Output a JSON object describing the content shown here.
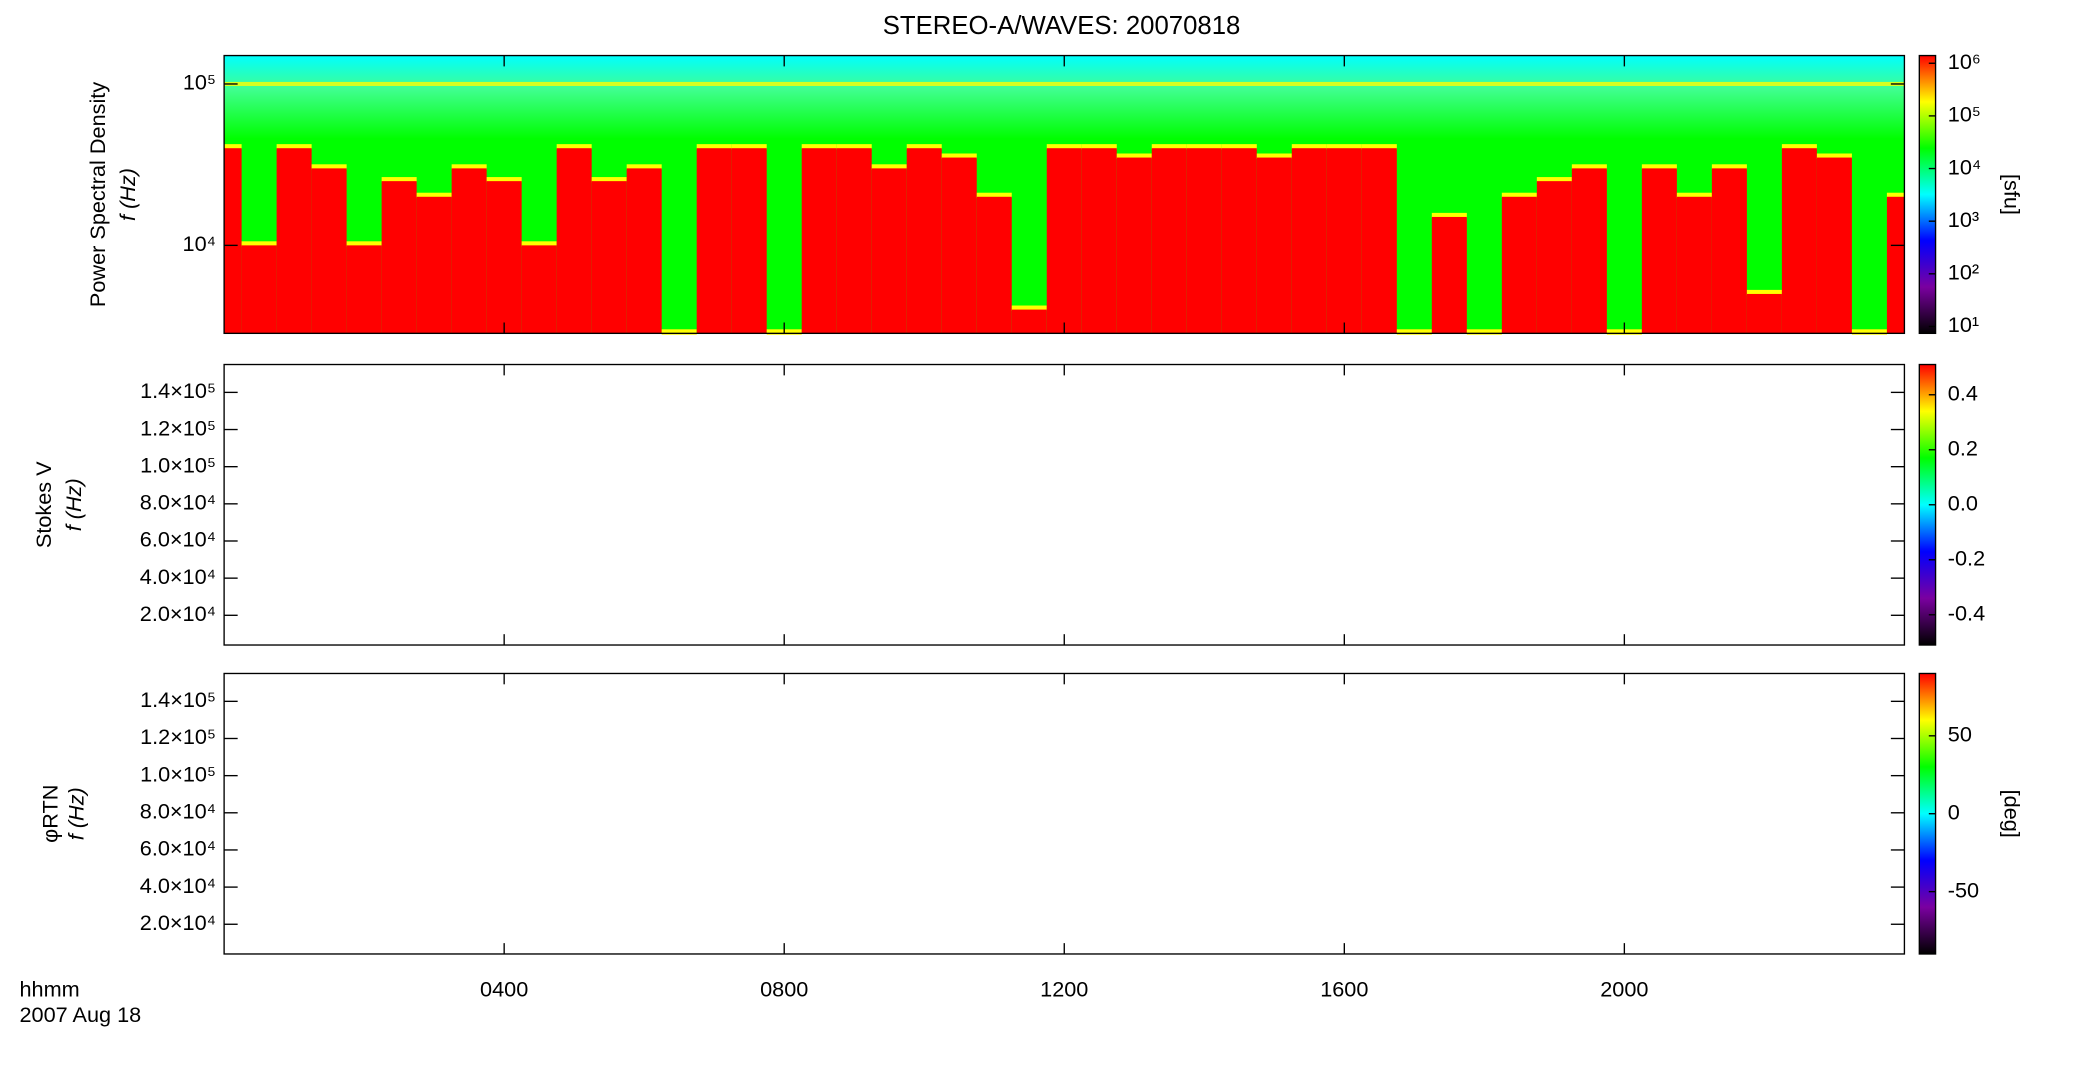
{
  "title": "STEREO-A/WAVES: 20070818",
  "x_label_lines": [
    "hhmm",
    "2007 Aug 18"
  ],
  "chart_data": [
    {
      "type": "spectrogram",
      "y_label": [
        "Power Spectral Density",
        "f (Hz)"
      ],
      "colorbar_label": "[sfu]",
      "log_y": true,
      "ylim": [
        2850,
        150000
      ],
      "yticks": [
        {
          "value": 10000,
          "label": "10⁴"
        },
        {
          "value": 100000,
          "label": "10⁵"
        }
      ],
      "xlim": [
        0,
        24
      ],
      "xticks": [
        {
          "value": 4,
          "label": "0400"
        },
        {
          "value": 8,
          "label": "0800"
        },
        {
          "value": 12,
          "label": "1200"
        },
        {
          "value": 16,
          "label": "1600"
        },
        {
          "value": 20,
          "label": "2000"
        }
      ],
      "log_c": true,
      "clim": [
        7.4,
        1400000
      ],
      "cticks": [
        {
          "value": 10,
          "label": "10¹"
        },
        {
          "value": 100,
          "label": "10²"
        },
        {
          "value": 1000,
          "label": "10³"
        },
        {
          "value": 10000,
          "label": "10⁴"
        },
        {
          "value": 100000,
          "label": "10⁵"
        },
        {
          "value": 1000000,
          "label": "10⁶"
        }
      ],
      "colormap": [
        "#000000",
        "#7a00a0",
        "#0000ff",
        "#00ffff",
        "#00ff00",
        "#ffff00",
        "#ff0000"
      ],
      "band_hz": 100000,
      "x": [
        0,
        0.5,
        1,
        1.5,
        2,
        2.5,
        3,
        3.5,
        4,
        4.5,
        5,
        5.5,
        6,
        6.5,
        7,
        7.5,
        8,
        8.5,
        9,
        9.5,
        10,
        10.5,
        11,
        11.5,
        12,
        12.5,
        13,
        13.5,
        14,
        14.5,
        15,
        15.5,
        16,
        16.5,
        17,
        17.5,
        18,
        18.5,
        19,
        19.5,
        20,
        20.5,
        21,
        21.5,
        22,
        22.5,
        23,
        23.5,
        24
      ],
      "values": [
        40000,
        10000,
        40000,
        30000,
        10000,
        25000,
        20000,
        30000,
        25000,
        10000,
        40000,
        25000,
        30000,
        2850,
        40000,
        40000,
        2850,
        40000,
        40000,
        30000,
        40000,
        35000,
        20000,
        4000,
        40000,
        40000,
        35000,
        40000,
        40000,
        40000,
        35000,
        40000,
        40000,
        40000,
        2850,
        15000,
        2850,
        20000,
        25000,
        30000,
        2850,
        30000,
        20000,
        30000,
        5000,
        40000,
        35000,
        2850,
        20000
      ]
    },
    {
      "type": "spectrogram",
      "y_label": [
        "Stokes V",
        "f (Hz)"
      ],
      "log_y": false,
      "ylim": [
        4000,
        155000
      ],
      "yticks": [
        {
          "value": 20000,
          "label": "2.0×10⁴"
        },
        {
          "value": 40000,
          "label": "4.0×10⁴"
        },
        {
          "value": 60000,
          "label": "6.0×10⁴"
        },
        {
          "value": 80000,
          "label": "8.0×10⁴"
        },
        {
          "value": 100000,
          "label": "1.0×10⁵"
        },
        {
          "value": 120000,
          "label": "1.2×10⁵"
        },
        {
          "value": 140000,
          "label": "1.4×10⁵"
        }
      ],
      "xlim": [
        0,
        24
      ],
      "xticks": [
        4,
        8,
        12,
        16,
        20
      ],
      "log_c": false,
      "clim": [
        -0.51,
        0.51
      ],
      "cticks": [
        -0.4,
        -0.2,
        {
          "value": 0,
          "label": "0.0"
        },
        0.2,
        0.4
      ],
      "colormap": [
        "#000000",
        "#7a00a0",
        "#0000ff",
        "#00ffff",
        "#00ff00",
        "#ffff00",
        "#ff0000"
      ]
    },
    {
      "type": "spectrogram",
      "y_label": [
        "φRTN",
        "f (Hz)"
      ],
      "colorbar_label": "[deg]",
      "log_y": false,
      "ylim": [
        4000,
        155000
      ],
      "yticks": [
        {
          "value": 20000,
          "label": "2.0×10⁴"
        },
        {
          "value": 40000,
          "label": "4.0×10⁴"
        },
        {
          "value": 60000,
          "label": "6.0×10⁴"
        },
        {
          "value": 80000,
          "label": "8.0×10⁴"
        },
        {
          "value": 100000,
          "label": "1.0×10⁵"
        },
        {
          "value": 120000,
          "label": "1.2×10⁵"
        },
        {
          "value": 140000,
          "label": "1.4×10⁵"
        }
      ],
      "xlim": [
        0,
        24
      ],
      "xticks": [
        {
          "value": 4,
          "label": "0400"
        },
        {
          "value": 8,
          "label": "0800"
        },
        {
          "value": 12,
          "label": "1200"
        },
        {
          "value": 16,
          "label": "1600"
        },
        {
          "value": 20,
          "label": "2000"
        }
      ],
      "log_c": false,
      "clim": [
        -90,
        90
      ],
      "cticks": [
        -50,
        0,
        50
      ],
      "colormap": [
        "#000000",
        "#7a00a0",
        "#0000ff",
        "#00ffff",
        "#00ff00",
        "#ffff00",
        "#ff0000"
      ]
    }
  ]
}
